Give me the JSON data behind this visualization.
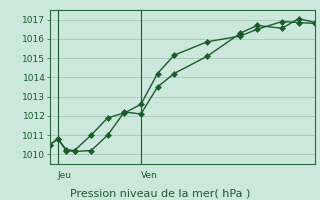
{
  "title": "Pression niveau de la mer( hPa )",
  "bg_color": "#cce8dc",
  "grid_color": "#aaccbb",
  "line_color": "#1a5c2a",
  "axis_color": "#2a6a3a",
  "ylim": [
    1009.5,
    1017.5
  ],
  "yticks": [
    1010,
    1011,
    1012,
    1013,
    1014,
    1015,
    1016,
    1017
  ],
  "xlim": [
    0,
    16
  ],
  "day_ticks": [
    0.5,
    5.5
  ],
  "day_labels": [
    "Jeu",
    "Ven"
  ],
  "day_vlines": [
    0.5,
    5.5
  ],
  "line1_x": [
    0.0,
    0.5,
    1.0,
    1.5,
    2.5,
    3.5,
    4.5,
    5.5,
    6.5,
    7.5,
    9.5,
    11.5,
    12.5,
    14.0,
    15.0,
    16.0
  ],
  "line1_y": [
    1010.5,
    1010.8,
    1010.2,
    1010.15,
    1010.2,
    1011.0,
    1012.2,
    1012.1,
    1013.5,
    1014.2,
    1015.1,
    1016.3,
    1016.7,
    1016.55,
    1017.05,
    1016.85
  ],
  "line2_x": [
    0.0,
    0.5,
    1.0,
    1.5,
    2.5,
    3.5,
    4.5,
    5.5,
    6.5,
    7.5,
    9.5,
    11.5,
    12.5,
    14.0,
    15.0,
    16.0
  ],
  "line2_y": [
    1010.5,
    1010.8,
    1010.25,
    1010.2,
    1011.0,
    1011.9,
    1012.15,
    1012.6,
    1014.2,
    1015.15,
    1015.85,
    1016.15,
    1016.5,
    1016.9,
    1016.85,
    1016.8
  ],
  "marker_size": 3.0,
  "linewidth": 1.0,
  "ylabel_fontsize": 6.5,
  "xlabel_fontsize": 8.0,
  "daylabel_fontsize": 6.5
}
